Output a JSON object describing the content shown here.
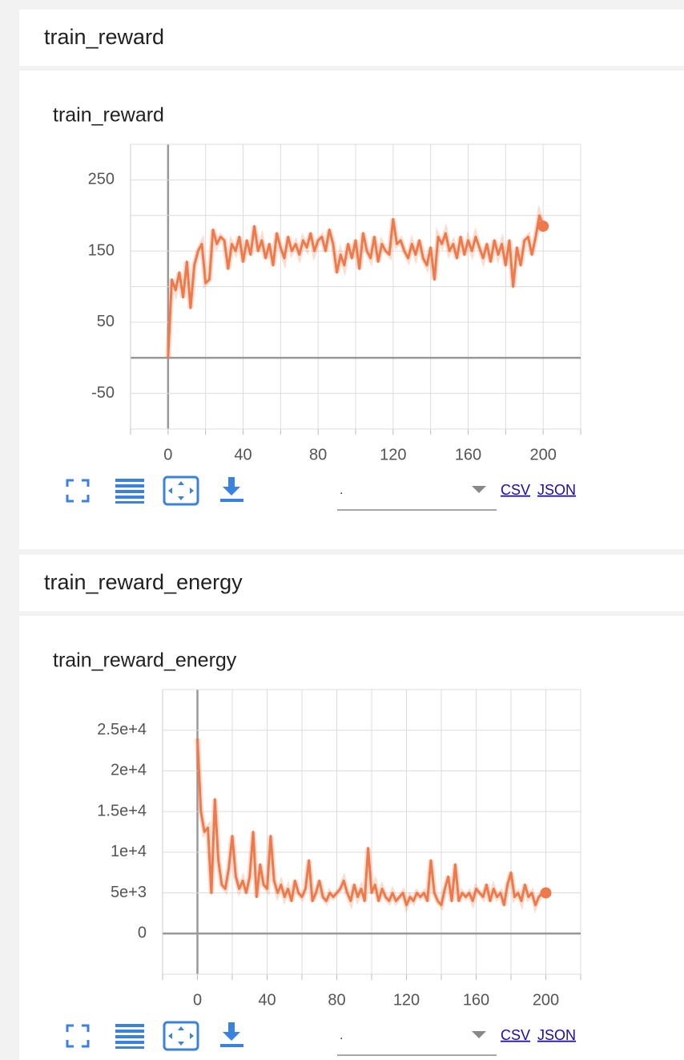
{
  "sections": [
    {
      "header": "train_reward"
    },
    {
      "header": "train_reward_energy"
    }
  ],
  "controls": {
    "dropdown": ".",
    "csv": "CSV",
    "json": "JSON"
  },
  "chart_data": [
    {
      "type": "line",
      "title": "train_reward",
      "color": "#ee7a4c",
      "xlim": [
        -20,
        220
      ],
      "xticks": [
        0,
        40,
        80,
        120,
        160,
        200
      ],
      "xminorticks": [
        -20,
        20,
        60,
        100,
        140,
        180,
        220
      ],
      "ylim": [
        -100,
        300
      ],
      "yticks": [
        250,
        150,
        50,
        -50
      ],
      "yminorticks": [
        300,
        200,
        100,
        0,
        -100
      ],
      "grid": true,
      "x": [
        0,
        2,
        4,
        6,
        8,
        10,
        12,
        14,
        16,
        18,
        20,
        22,
        24,
        26,
        28,
        30,
        32,
        34,
        36,
        38,
        40,
        42,
        44,
        46,
        48,
        50,
        52,
        54,
        56,
        58,
        60,
        62,
        64,
        66,
        68,
        70,
        72,
        74,
        76,
        78,
        80,
        82,
        84,
        86,
        88,
        90,
        92,
        94,
        96,
        98,
        100,
        102,
        104,
        106,
        108,
        110,
        112,
        114,
        116,
        118,
        120,
        122,
        124,
        126,
        128,
        130,
        132,
        134,
        136,
        138,
        140,
        142,
        144,
        146,
        148,
        150,
        152,
        154,
        156,
        158,
        160,
        162,
        164,
        166,
        168,
        170,
        172,
        174,
        176,
        178,
        180,
        182,
        184,
        186,
        188,
        190,
        192,
        194,
        196,
        198,
        200
      ],
      "values": [
        0,
        110,
        95,
        120,
        85,
        135,
        70,
        130,
        150,
        160,
        105,
        110,
        180,
        160,
        170,
        165,
        125,
        160,
        150,
        170,
        135,
        165,
        145,
        185,
        150,
        165,
        140,
        160,
        130,
        175,
        155,
        140,
        170,
        150,
        160,
        145,
        165,
        155,
        175,
        150,
        165,
        170,
        150,
        180,
        160,
        120,
        145,
        130,
        160,
        140,
        165,
        125,
        175,
        150,
        140,
        170,
        135,
        160,
        150,
        145,
        195,
        160,
        165,
        150,
        140,
        160,
        145,
        165,
        140,
        130,
        155,
        110,
        170,
        160,
        175,
        150,
        160,
        140,
        170,
        145,
        165,
        150,
        170,
        155,
        140,
        160,
        135,
        165,
        145,
        160,
        130,
        165,
        100,
        155,
        130,
        165,
        170,
        145,
        170,
        200,
        185
      ]
    },
    {
      "type": "line",
      "title": "train_reward_energy",
      "color": "#ee7a4c",
      "xlim": [
        -20,
        220
      ],
      "xticks": [
        0,
        40,
        80,
        120,
        160,
        200
      ],
      "xminorticks": [
        -20,
        20,
        60,
        100,
        140,
        180,
        220
      ],
      "ylim": [
        -5000,
        30000
      ],
      "yticks": [
        {
          "value": 25000,
          "label": "2.5e+4"
        },
        {
          "value": 20000,
          "label": "2e+4"
        },
        {
          "value": 15000,
          "label": "1.5e+4"
        },
        {
          "value": 10000,
          "label": "1e+4"
        },
        {
          "value": 5000,
          "label": "5e+3"
        },
        0
      ],
      "yminorticks": [
        30000,
        -5000
      ],
      "grid": true,
      "x": [
        0,
        2,
        4,
        6,
        8,
        10,
        12,
        14,
        16,
        18,
        20,
        22,
        24,
        26,
        28,
        30,
        32,
        34,
        36,
        38,
        40,
        42,
        44,
        46,
        48,
        50,
        52,
        54,
        56,
        58,
        60,
        62,
        64,
        66,
        68,
        70,
        72,
        74,
        76,
        78,
        80,
        82,
        84,
        86,
        88,
        90,
        92,
        94,
        96,
        98,
        100,
        102,
        104,
        106,
        108,
        110,
        112,
        114,
        116,
        118,
        120,
        122,
        124,
        126,
        128,
        130,
        132,
        134,
        136,
        138,
        140,
        142,
        144,
        146,
        148,
        150,
        152,
        154,
        156,
        158,
        160,
        162,
        164,
        166,
        168,
        170,
        172,
        174,
        176,
        178,
        180,
        182,
        184,
        186,
        188,
        190,
        192,
        194,
        196,
        198,
        200
      ],
      "values": [
        24000,
        15000,
        12500,
        13000,
        5000,
        16500,
        9000,
        6000,
        5500,
        8000,
        12000,
        7000,
        5500,
        6500,
        5000,
        7000,
        12500,
        4500,
        8500,
        6000,
        5500,
        12000,
        6500,
        5000,
        6000,
        4500,
        5500,
        4000,
        6500,
        5000,
        4500,
        5500,
        9000,
        4000,
        5000,
        6500,
        4500,
        4000,
        5000,
        4500,
        5000,
        5500,
        6500,
        5000,
        4000,
        6000,
        4500,
        5500,
        4000,
        10500,
        5000,
        6000,
        4000,
        5500,
        4500,
        4000,
        5000,
        4000,
        4500,
        5000,
        3500,
        4500,
        4000,
        5000,
        4500,
        5000,
        4000,
        9000,
        5000,
        4000,
        3500,
        5500,
        7000,
        4000,
        8500,
        4000,
        5000,
        4500,
        5000,
        4000,
        5500,
        5000,
        4500,
        6000,
        4000,
        5500,
        4500,
        5000,
        3500,
        6000,
        7500,
        4500,
        5000,
        4000,
        6000,
        4500,
        5000,
        3500,
        4500,
        5000,
        5000
      ]
    }
  ]
}
